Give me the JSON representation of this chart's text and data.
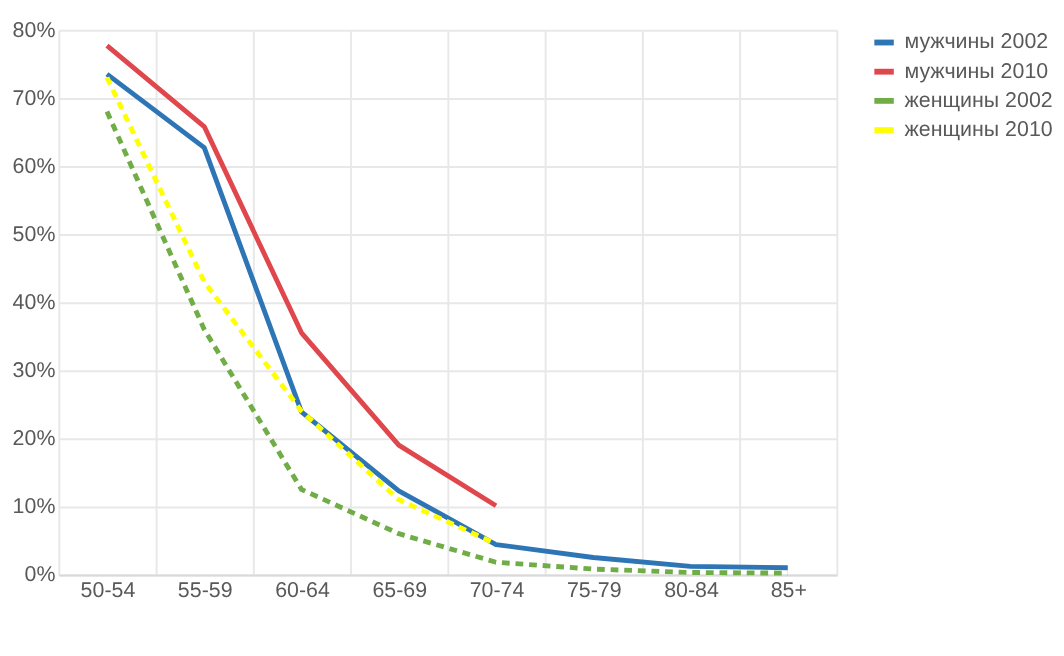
{
  "chart_data": {
    "type": "line",
    "categories": [
      "50-54",
      "55-59",
      "60-64",
      "65-69",
      "70-74",
      "75-79",
      "80-84",
      "85+"
    ],
    "ylim": [
      0,
      80
    ],
    "yticks": [
      {
        "value": 0,
        "label": "0%"
      },
      {
        "value": 10,
        "label": "10%"
      },
      {
        "value": 20,
        "label": "20%"
      },
      {
        "value": 30,
        "label": "30%"
      },
      {
        "value": 40,
        "label": "40%"
      },
      {
        "value": 50,
        "label": "50%"
      },
      {
        "value": 60,
        "label": "60%"
      },
      {
        "value": 70,
        "label": "70%"
      },
      {
        "value": 80,
        "label": "80%"
      }
    ],
    "grid": true,
    "legend": "right",
    "marker": "none",
    "series": [
      {
        "name": "мужчины 2002",
        "color": "#2e75b6",
        "line_style": "solid",
        "values": [
          73.5,
          62.7,
          23.9,
          12.3,
          4.4,
          2.5,
          1.2,
          1.0
        ]
      },
      {
        "name": "мужчины 2010",
        "color": "#e0474c",
        "line_style": "solid",
        "values": [
          77.7,
          65.8,
          35.5,
          19,
          10.1,
          null,
          null,
          null
        ]
      },
      {
        "name": "женщины 2002",
        "color": "#70ad47",
        "line_style": "dashed",
        "values": [
          68,
          36,
          12.5,
          6,
          1.8,
          0.8,
          0.3,
          0.2
        ]
      },
      {
        "name": "женщины 2010",
        "color": "#ffff00",
        "line_style": "dashed",
        "values": [
          73,
          43,
          24,
          11,
          4.5,
          null,
          null,
          null
        ]
      }
    ]
  }
}
